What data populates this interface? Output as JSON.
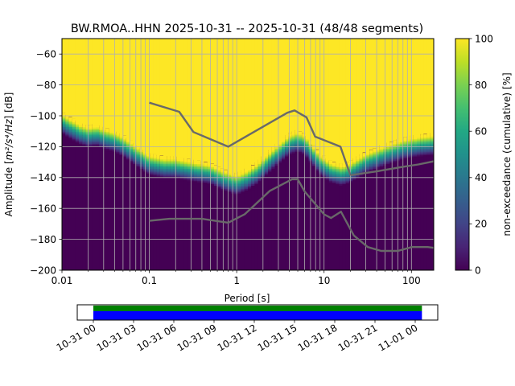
{
  "chart_data": {
    "type": "heatmap",
    "title": "BW.RMOA..HHN   2025-10-31 -- 2025-10-31  (48/48 segments)",
    "xlabel": "Period [s]",
    "ylabel_prefix": "Amplitude [",
    "ylabel_unit": "m²/s⁴/Hz",
    "ylabel_suffix": "] [dB]",
    "xscale": "log",
    "xlim": [
      0.01,
      180
    ],
    "ylim": [
      -200,
      -50
    ],
    "x_ticks": [
      {
        "v": 0.01,
        "label": "0.01"
      },
      {
        "v": 0.1,
        "label": "0.1"
      },
      {
        "v": 1,
        "label": "1"
      },
      {
        "v": 10,
        "label": "10"
      },
      {
        "v": 100,
        "label": "100"
      }
    ],
    "y_ticks": [
      {
        "v": -60,
        "label": "−60"
      },
      {
        "v": -80,
        "label": "−80"
      },
      {
        "v": -100,
        "label": "−100"
      },
      {
        "v": -120,
        "label": "−120"
      },
      {
        "v": -140,
        "label": "−140"
      },
      {
        "v": -160,
        "label": "−160"
      },
      {
        "v": -180,
        "label": "−180"
      },
      {
        "v": -200,
        "label": "−200"
      }
    ],
    "colorbar": {
      "label": "non-exceedance (cumulative) [%]",
      "range": [
        0,
        100
      ],
      "ticks": [
        {
          "v": 0,
          "label": "0"
        },
        {
          "v": 20,
          "label": "20"
        },
        {
          "v": 40,
          "label": "40"
        },
        {
          "v": 60,
          "label": "60"
        },
        {
          "v": 80,
          "label": "80"
        },
        {
          "v": 100,
          "label": "100"
        }
      ]
    },
    "psd_boundary": {
      "period": [
        0.01,
        0.012,
        0.016,
        0.02,
        0.025,
        0.03,
        0.04,
        0.05,
        0.07,
        0.1,
        0.15,
        0.2,
        0.3,
        0.5,
        0.7,
        1.0,
        1.3,
        1.7,
        2.2,
        3.0,
        4.0,
        5.0,
        6.0,
        7.0,
        9.0,
        12.0,
        16.0,
        20.0,
        30.0,
        50.0,
        80.0,
        120.0,
        180.0
      ],
      "db": [
        -105,
        -108,
        -112,
        -114,
        -113,
        -115,
        -117,
        -120,
        -126,
        -132,
        -134,
        -134,
        -136,
        -138,
        -142,
        -145,
        -142,
        -138,
        -132,
        -125,
        -119,
        -117,
        -119,
        -124,
        -132,
        -137,
        -139,
        -137,
        -131,
        -126,
        -122,
        -120,
        -119
      ],
      "transition_width_db": 12
    },
    "noise_models": [
      {
        "name": "NHNM",
        "period": [
          0.1,
          0.22,
          0.32,
          0.8,
          3.8,
          4.6,
          6.3,
          7.9,
          15.4,
          20.0
        ],
        "db": [
          -91.5,
          -97.4,
          -110.5,
          -120.0,
          -98.0,
          -96.5,
          -101.0,
          -113.5,
          -120.0,
          -138.5
        ]
      },
      {
        "name": "NHNM-extension",
        "period": [
          20.0,
          40.0,
          80.0,
          120.0,
          180.0
        ],
        "db": [
          -138.5,
          -136.0,
          -133.0,
          -131.5,
          -129.5
        ]
      },
      {
        "name": "NLNM",
        "period": [
          0.1,
          0.17,
          0.4,
          0.8,
          1.24,
          2.4,
          4.3,
          5.0,
          6.0,
          10.0,
          12.0,
          15.6,
          21.9,
          31.6,
          45.0,
          70.0,
          101.0,
          154.0,
          180.0
        ],
        "db": [
          -168.0,
          -166.7,
          -166.7,
          -169.2,
          -163.7,
          -148.6,
          -141.1,
          -141.1,
          -149.0,
          -163.8,
          -166.2,
          -162.1,
          -177.5,
          -185.0,
          -187.5,
          -187.5,
          -185.0,
          -185.0,
          -185.5
        ]
      }
    ],
    "timeline": {
      "ticks": [
        "10-31 00",
        "10-31 03",
        "10-31 06",
        "10-31 09",
        "10-31 12",
        "10-31 15",
        "10-31 18",
        "10-31 21",
        "11-01 00"
      ],
      "span_hours": 27.5,
      "start_offset_hours": 0,
      "coverage": [
        {
          "from_hour": 0,
          "to_hour": 24.5,
          "color": "#0000ff"
        }
      ],
      "segment_starts": [
        {
          "from_hour": 0,
          "to_hour": 24.5,
          "color": "#008000"
        }
      ]
    },
    "colors": {
      "above": "#fde725",
      "below": "#440154",
      "grid": "#b0b0b0",
      "noise_model": "#696969"
    }
  }
}
